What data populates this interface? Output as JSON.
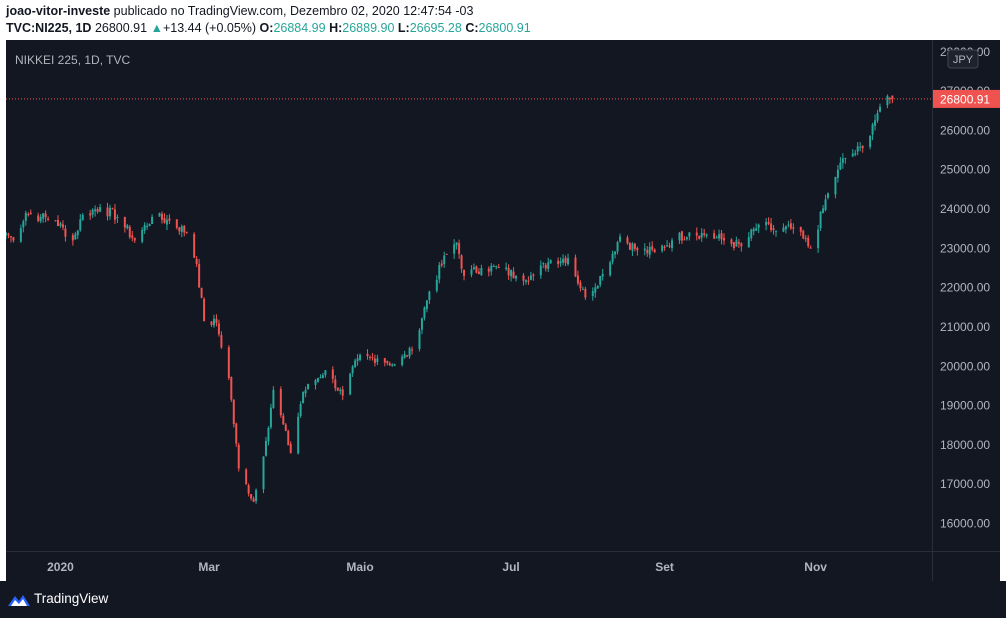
{
  "header": {
    "author": "joao-vitor-investe",
    "published_text": "publicado no TradingView.com, Dezembro 02, 2020 12:47:54 -03",
    "symbol": "TVC:NI225, 1D",
    "last": "26800.91",
    "change": "+13.44 (+0.05%)",
    "o_label": "O:",
    "o_value": "26884.99",
    "h_label": "H:",
    "h_value": "26889.90",
    "l_label": "L:",
    "l_value": "26695.28",
    "c_label": "C:",
    "c_value": "26800.91"
  },
  "colors": {
    "up": "#26a69a",
    "down": "#ef5350",
    "background": "#131722",
    "grid": "#363a45",
    "text": "#b2b5be",
    "price_line": "#ef5350"
  },
  "footer": {
    "brand": "TradingView",
    "icon": "tradingview-logo-icon"
  },
  "chart_data": {
    "type": "candlestick",
    "title": "NIKKEI 225, 1D, TVC",
    "currency": "JPY",
    "last_price": 26800.91,
    "last_price_label": "26800.91",
    "ylim": [
      15300,
      28300
    ],
    "yticks": [
      16000,
      17000,
      18000,
      19000,
      20000,
      21000,
      22000,
      23000,
      24000,
      25000,
      26000,
      27000,
      28000
    ],
    "ytick_labels": [
      "16000.00",
      "17000.00",
      "18000.00",
      "19000.00",
      "20000.00",
      "21000.00",
      "22000.00",
      "23000.00",
      "24000.00",
      "25000.00",
      "26000.00",
      "27000.00",
      "28000.00"
    ],
    "xlim": [
      "2019-12-10",
      "2020-12-18"
    ],
    "xticks": [
      {
        "date": "2020-01-01",
        "label": "2020"
      },
      {
        "date": "2020-03-01",
        "label": "Mar"
      },
      {
        "date": "2020-05-01",
        "label": "Maio"
      },
      {
        "date": "2020-07-01",
        "label": "Jul"
      },
      {
        "date": "2020-09-01",
        "label": "Set"
      },
      {
        "date": "2020-11-01",
        "label": "Nov"
      }
    ],
    "grid": false,
    "close_anchors": [
      [
        "2019-12-10",
        23400
      ],
      [
        "2019-12-13",
        23200
      ],
      [
        "2019-12-18",
        23900
      ],
      [
        "2019-12-24",
        23800
      ],
      [
        "2019-12-30",
        23700
      ],
      [
        "2020-01-06",
        23200
      ],
      [
        "2020-01-10",
        23850
      ],
      [
        "2020-01-17",
        24050
      ],
      [
        "2020-01-24",
        23800
      ],
      [
        "2020-01-31",
        23200
      ],
      [
        "2020-02-07",
        23800
      ],
      [
        "2020-02-14",
        23700
      ],
      [
        "2020-02-21",
        23400
      ],
      [
        "2020-02-25",
        22600
      ],
      [
        "2020-02-28",
        21150
      ],
      [
        "2020-03-04",
        21100
      ],
      [
        "2020-03-09",
        19700
      ],
      [
        "2020-03-13",
        17400
      ],
      [
        "2020-03-19",
        16550
      ],
      [
        "2020-03-24",
        18100
      ],
      [
        "2020-03-27",
        19400
      ],
      [
        "2020-04-03",
        17800
      ],
      [
        "2020-04-08",
        19350
      ],
      [
        "2020-04-17",
        19900
      ],
      [
        "2020-04-24",
        19250
      ],
      [
        "2020-04-30",
        20200
      ],
      [
        "2020-05-08",
        20200
      ],
      [
        "2020-05-15",
        20050
      ],
      [
        "2020-05-22",
        20400
      ],
      [
        "2020-05-29",
        21900
      ],
      [
        "2020-06-05",
        22850
      ],
      [
        "2020-06-09",
        23150
      ],
      [
        "2020-06-12",
        22300
      ],
      [
        "2020-06-19",
        22500
      ],
      [
        "2020-06-26",
        22500
      ],
      [
        "2020-07-03",
        22300
      ],
      [
        "2020-07-10",
        22300
      ],
      [
        "2020-07-17",
        22700
      ],
      [
        "2020-07-24",
        22750
      ],
      [
        "2020-07-31",
        21750
      ],
      [
        "2020-08-07",
        22350
      ],
      [
        "2020-08-14",
        23300
      ],
      [
        "2020-08-21",
        22950
      ],
      [
        "2020-08-28",
        22900
      ],
      [
        "2020-09-04",
        23200
      ],
      [
        "2020-09-11",
        23400
      ],
      [
        "2020-09-18",
        23350
      ],
      [
        "2020-09-25",
        23200
      ],
      [
        "2020-10-02",
        23050
      ],
      [
        "2020-10-09",
        23600
      ],
      [
        "2020-10-16",
        23450
      ],
      [
        "2020-10-23",
        23500
      ],
      [
        "2020-10-30",
        23000
      ],
      [
        "2020-11-06",
        24400
      ],
      [
        "2020-11-10",
        25000
      ],
      [
        "2020-11-13",
        25300
      ],
      [
        "2020-11-20",
        25550
      ],
      [
        "2020-11-24",
        26150
      ],
      [
        "2020-11-27",
        26600
      ],
      [
        "2020-12-02",
        26800
      ]
    ],
    "last_candle": {
      "date": "2020-12-02",
      "open": 26884.99,
      "high": 26889.9,
      "low": 26695.28,
      "close": 26800.91
    }
  }
}
